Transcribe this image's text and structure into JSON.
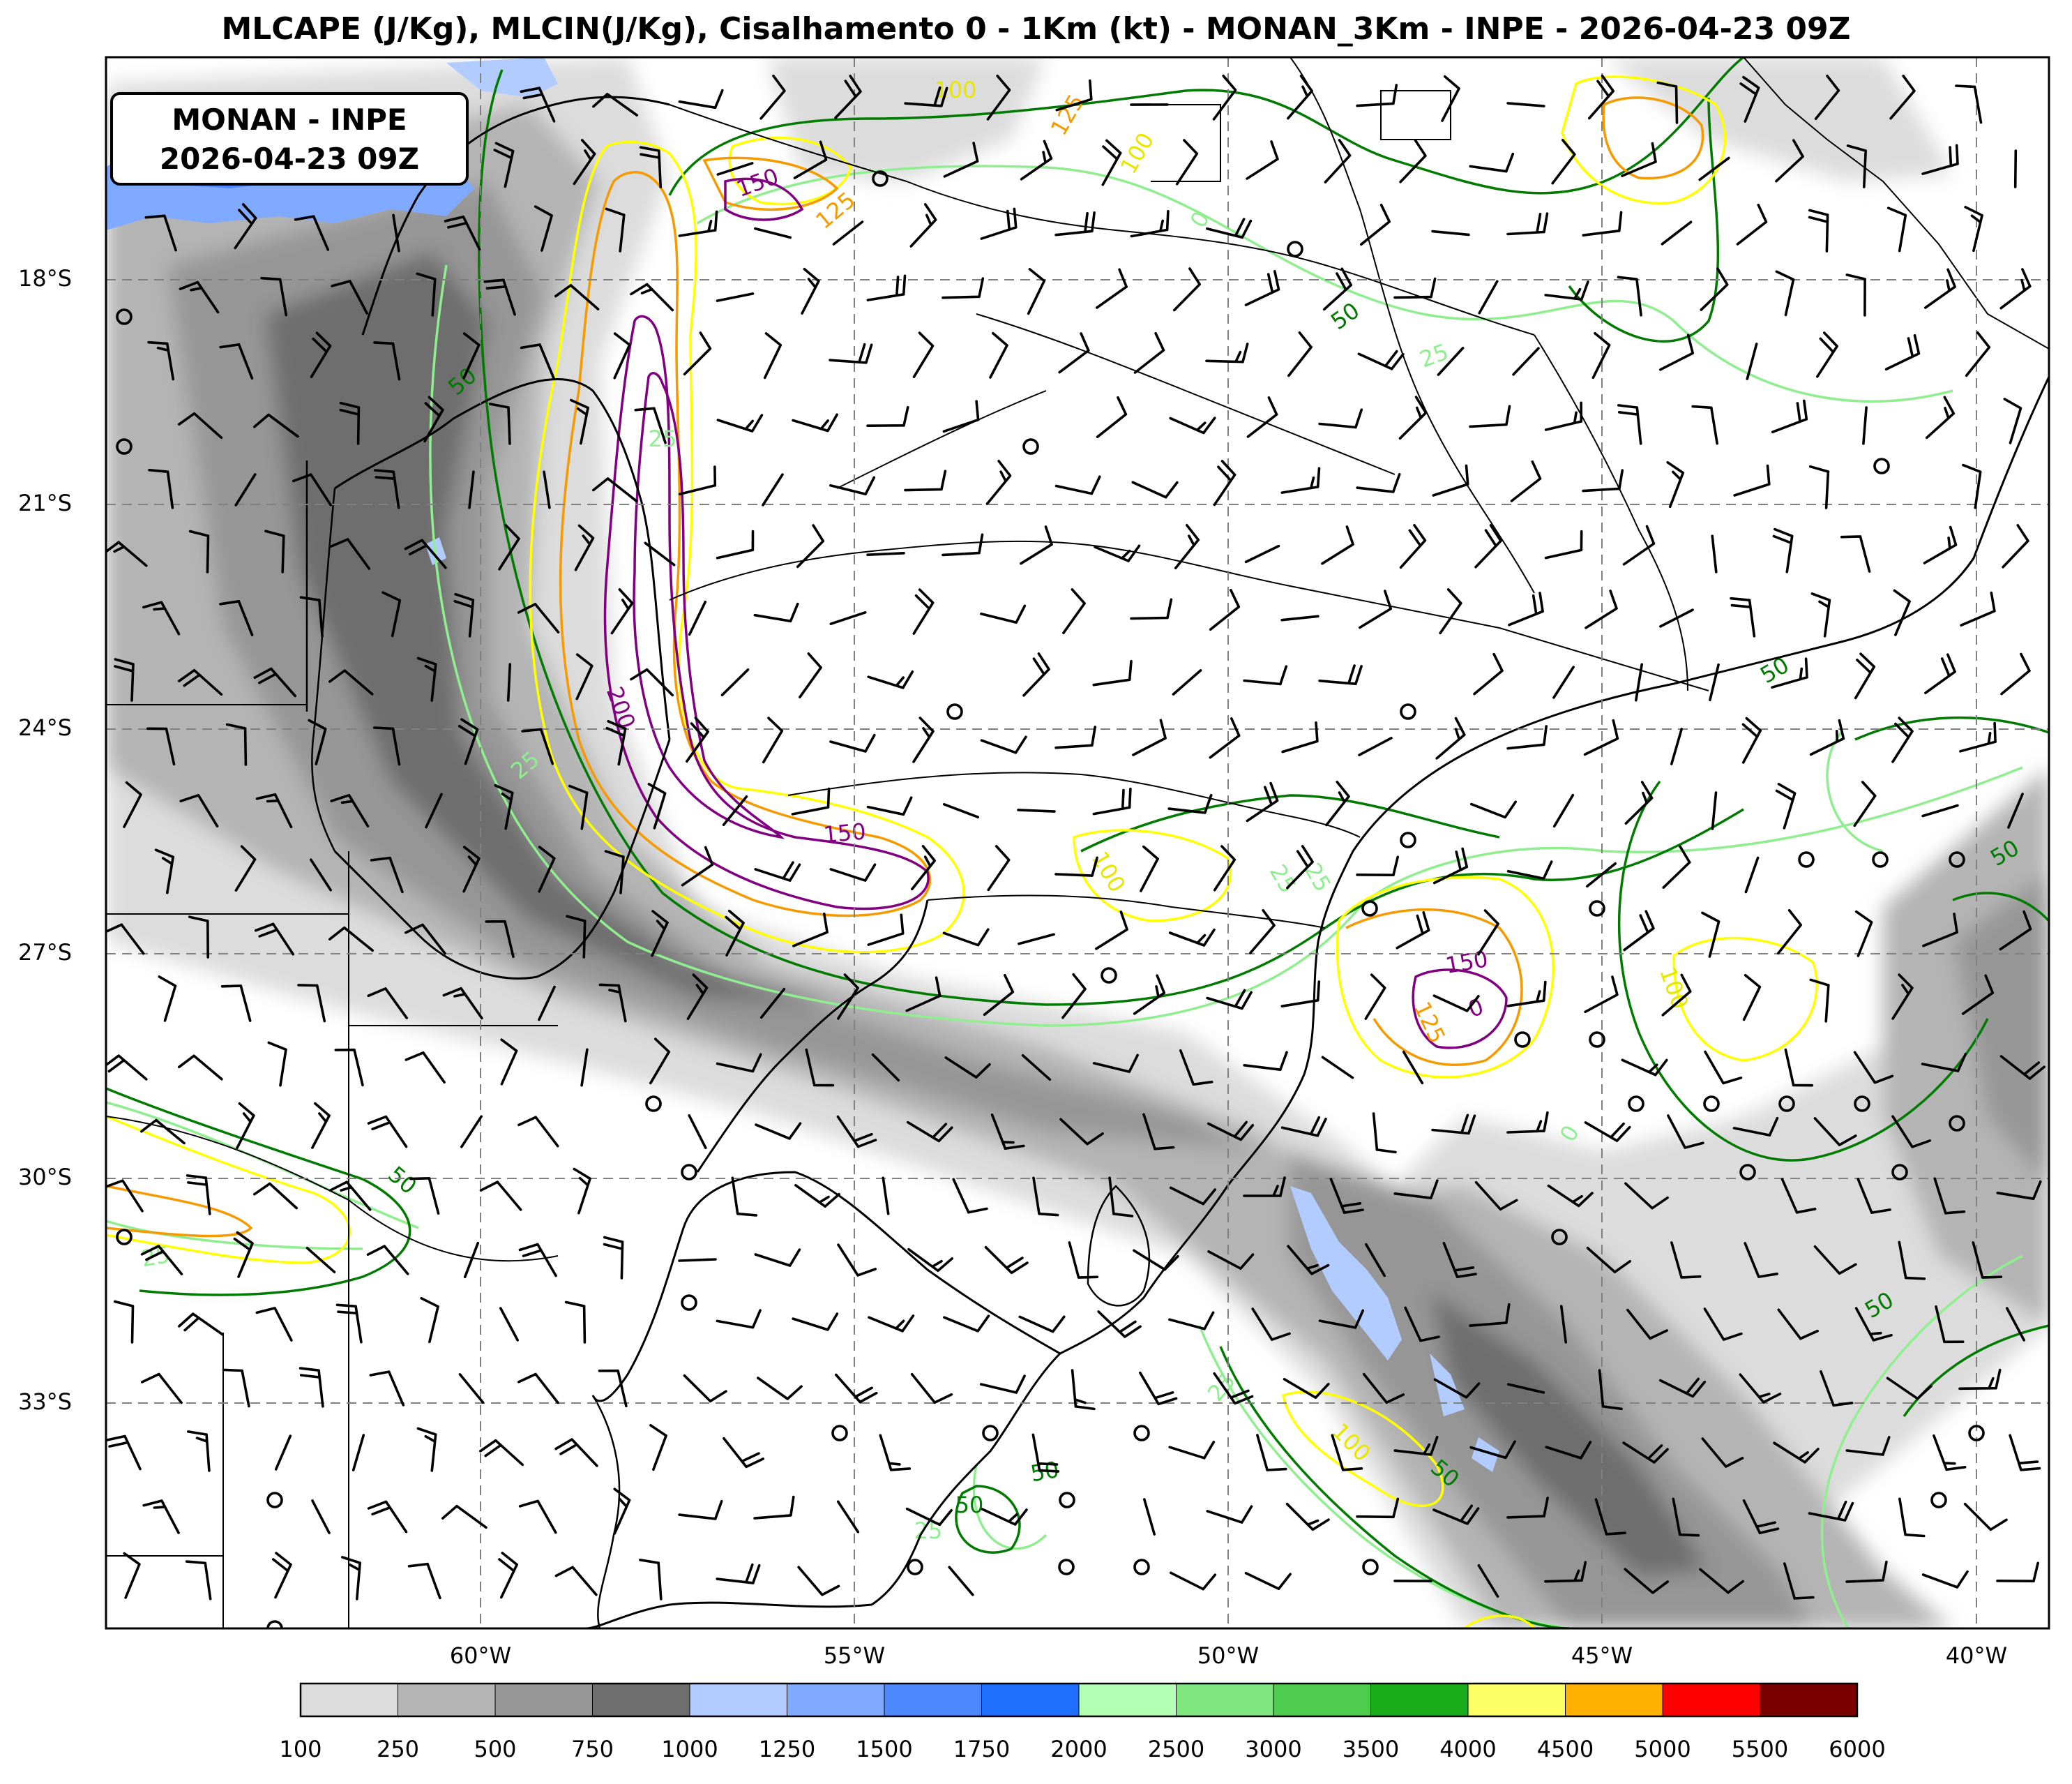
{
  "title": "MLCAPE (J/Kg), MLCIN(J/Kg), Cisalhamento 0 - 1Km (kt) - MONAN_3Km - INPE - 2026-04-23 09Z",
  "annotation": {
    "line1": "MONAN - INPE",
    "line2": "2026-04-23 09Z"
  },
  "map": {
    "projection": "PlateCarree",
    "lon_range": [
      -65,
      -39
    ],
    "lat_range": [
      -36.5,
      -15.2
    ],
    "gridlines": "dashed gray",
    "lat_ticks": [
      "18°S",
      "21°S",
      "24°S",
      "27°S",
      "30°S",
      "33°S"
    ],
    "lon_ticks": [
      "60°W",
      "55°W",
      "50°W",
      "45°W",
      "40°W"
    ],
    "features": [
      "coastlines",
      "country borders",
      "state borders",
      "wind barbs (kt)",
      "calm circles"
    ]
  },
  "fields": {
    "shaded": "MLCAPE (J/Kg)",
    "contours": "MLCIN (J/Kg)",
    "barbs": "Cisalhamento 0 - 1Km (kt)"
  },
  "contour_labels": [
    {
      "text": "100",
      "color": "#e6e600"
    },
    {
      "text": "125",
      "color": "#f59a00"
    },
    {
      "text": "100",
      "color": "#e6e600"
    },
    {
      "text": "150",
      "color": "#800080"
    },
    {
      "text": "125",
      "color": "#f59a00"
    },
    {
      "text": "0",
      "color": "#90ee90"
    },
    {
      "text": "50",
      "color": "#007a00"
    },
    {
      "text": "25",
      "color": "#90ee90"
    },
    {
      "text": "50",
      "color": "#007a00"
    },
    {
      "text": "25",
      "color": "#90ee90"
    },
    {
      "text": "200",
      "color": "#800080"
    },
    {
      "text": "25",
      "color": "#90ee90"
    },
    {
      "text": "150",
      "color": "#800080"
    },
    {
      "text": "100",
      "color": "#e6e600"
    },
    {
      "text": "25",
      "color": "#90ee90"
    },
    {
      "text": "150",
      "color": "#800080"
    },
    {
      "text": "125",
      "color": "#f59a00"
    },
    {
      "text": "0",
      "color": "#800080"
    },
    {
      "text": "100",
      "color": "#e6e600"
    },
    {
      "text": "50",
      "color": "#007a00"
    },
    {
      "text": "50",
      "color": "#007a00"
    },
    {
      "text": "25",
      "color": "#90ee90"
    },
    {
      "text": "0",
      "color": "#90ee90"
    },
    {
      "text": "50",
      "color": "#007a00"
    },
    {
      "text": "25",
      "color": "#90ee90"
    },
    {
      "text": "100",
      "color": "#e6e600"
    },
    {
      "text": "50",
      "color": "#007a00"
    },
    {
      "text": "25",
      "color": "#90ee90"
    },
    {
      "text": "50",
      "color": "#007a00"
    },
    {
      "text": "50",
      "color": "#007a00"
    },
    {
      "text": "25",
      "color": "#90ee90"
    },
    {
      "text": "50",
      "color": "#007a00"
    }
  ],
  "colorbar": {
    "labels": [
      "100",
      "250",
      "500",
      "750",
      "1000",
      "1250",
      "1500",
      "1750",
      "2000",
      "2500",
      "3000",
      "3500",
      "4000",
      "4500",
      "5000",
      "5500",
      "6000"
    ],
    "colors": [
      "#dcdcdc",
      "#b4b4b4",
      "#969696",
      "#6e6e6e",
      "#b3ccff",
      "#80aaff",
      "#4d88ff",
      "#1f6fff",
      "#b3ffb3",
      "#80e680",
      "#4dcc4d",
      "#1aad1a",
      "#ffff66",
      "#ffb000",
      "#ff0000",
      "#7a0000"
    ]
  }
}
